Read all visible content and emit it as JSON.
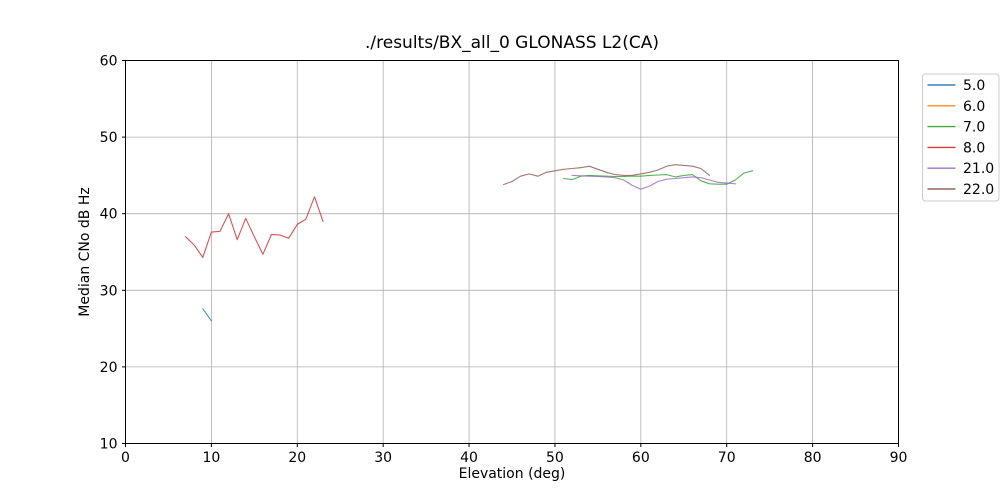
{
  "figure": {
    "background": "#ffffff"
  },
  "chart_data": {
    "type": "line",
    "title": "./results/BX_all_0 GLONASS L2(CA)",
    "xlabel": "Elevation (deg)",
    "ylabel": "Median CNo dB Hz",
    "xlim": [
      0,
      90
    ],
    "ylim": [
      10,
      60
    ],
    "xticks": [
      0,
      10,
      20,
      30,
      40,
      50,
      60,
      70,
      80,
      90
    ],
    "yticks": [
      10,
      20,
      30,
      40,
      50,
      60
    ],
    "grid": true,
    "grid_color": "#b0b0b0",
    "axis_color": "#000000",
    "legend": {
      "position": "outside-upper-right",
      "border_color": "#cccccc",
      "background": "rgba(255,255,255,0.8)"
    },
    "series": [
      {
        "name": "5.0",
        "color": "#1f77b4",
        "points": [
          [
            9,
            27.6
          ],
          [
            10,
            26.0
          ]
        ]
      },
      {
        "name": "6.0",
        "color": "#ff7f0e",
        "points": []
      },
      {
        "name": "7.0",
        "color": "#2ca02c",
        "points": [
          [
            51,
            44.6
          ],
          [
            52,
            44.45
          ],
          [
            53,
            44.9
          ],
          [
            54,
            45.0
          ],
          [
            55,
            44.95
          ],
          [
            56,
            44.9
          ],
          [
            57,
            44.85
          ],
          [
            58,
            44.85
          ],
          [
            59,
            44.9
          ],
          [
            60,
            44.9
          ],
          [
            61,
            45.0
          ],
          [
            62,
            45.05
          ],
          [
            63,
            45.1
          ],
          [
            64,
            44.8
          ],
          [
            65,
            45.0
          ],
          [
            66,
            45.1
          ],
          [
            67,
            44.3
          ],
          [
            68,
            43.9
          ],
          [
            69,
            43.85
          ],
          [
            70,
            43.85
          ],
          [
            71,
            44.4
          ],
          [
            72,
            45.3
          ],
          [
            73,
            45.6
          ]
        ]
      },
      {
        "name": "8.0",
        "color": "#d62728",
        "points": [
          [
            7,
            37.0
          ],
          [
            8,
            35.9
          ],
          [
            9,
            34.3
          ],
          [
            10,
            37.6
          ],
          [
            11,
            37.7
          ],
          [
            12,
            40.0
          ],
          [
            13,
            36.6
          ],
          [
            14,
            39.4
          ],
          [
            15,
            37.0
          ],
          [
            16,
            34.7
          ],
          [
            17,
            37.3
          ],
          [
            18,
            37.2
          ],
          [
            19,
            36.8
          ],
          [
            20,
            38.6
          ],
          [
            21,
            39.3
          ],
          [
            22,
            42.2
          ],
          [
            23,
            39.0
          ]
        ]
      },
      {
        "name": "21.0",
        "color": "#9467bd",
        "points": [
          [
            52,
            45.0
          ],
          [
            53,
            44.95
          ],
          [
            54,
            44.9
          ],
          [
            55,
            44.85
          ],
          [
            56,
            44.8
          ],
          [
            57,
            44.7
          ],
          [
            58,
            44.4
          ],
          [
            59,
            43.7
          ],
          [
            60,
            43.2
          ],
          [
            61,
            43.6
          ],
          [
            62,
            44.2
          ],
          [
            63,
            44.5
          ],
          [
            64,
            44.6
          ],
          [
            65,
            44.7
          ],
          [
            66,
            44.8
          ],
          [
            67,
            44.7
          ],
          [
            68,
            44.4
          ],
          [
            69,
            44.1
          ],
          [
            70,
            44.0
          ],
          [
            71,
            43.9
          ]
        ]
      },
      {
        "name": "22.0",
        "color": "#8c564b",
        "points": [
          [
            44,
            43.8
          ],
          [
            45,
            44.2
          ],
          [
            46,
            44.9
          ],
          [
            47,
            45.2
          ],
          [
            48,
            44.9
          ],
          [
            49,
            45.4
          ],
          [
            50,
            45.6
          ],
          [
            51,
            45.8
          ],
          [
            52,
            45.9
          ],
          [
            53,
            46.0
          ],
          [
            54,
            46.2
          ],
          [
            55,
            45.8
          ],
          [
            56,
            45.4
          ],
          [
            57,
            45.1
          ],
          [
            58,
            45.0
          ],
          [
            59,
            45.0
          ],
          [
            60,
            45.2
          ],
          [
            61,
            45.4
          ],
          [
            62,
            45.7
          ],
          [
            63,
            46.2
          ],
          [
            64,
            46.4
          ],
          [
            65,
            46.3
          ],
          [
            66,
            46.2
          ],
          [
            67,
            45.9
          ],
          [
            68,
            45.0
          ]
        ]
      }
    ]
  }
}
